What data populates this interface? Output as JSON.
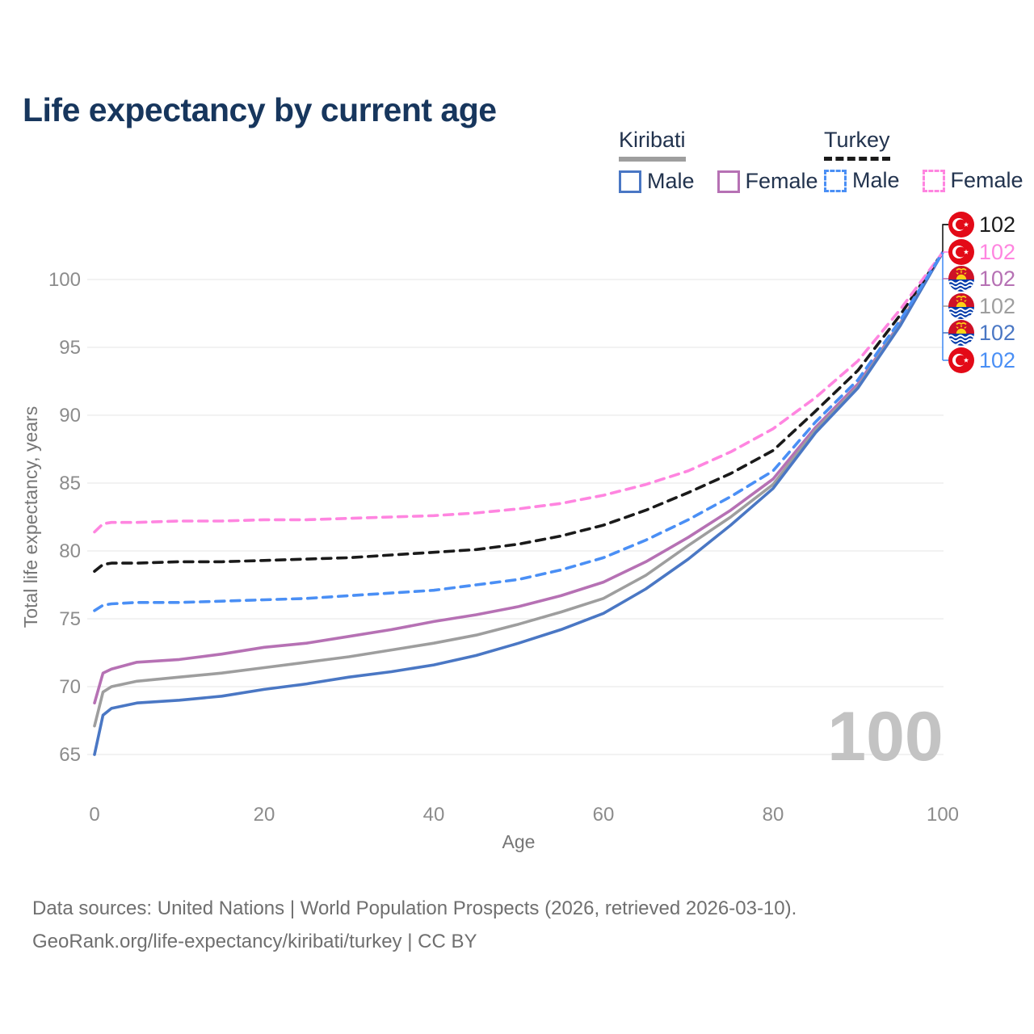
{
  "title": "Life expectancy by current age",
  "watermark": "100",
  "legend": {
    "groups": [
      {
        "name": "Kiribati",
        "line_style": "solid",
        "underline_color": "#9e9e9e",
        "items": [
          {
            "label": "Male",
            "color": "#4a77c4"
          },
          {
            "label": "Female",
            "color": "#b671b4"
          }
        ]
      },
      {
        "name": "Turkey",
        "line_style": "dashed",
        "underline_color": "#1a1a1a",
        "items": [
          {
            "label": "Male",
            "color": "#4a8ff5"
          },
          {
            "label": "Female",
            "color": "#ff85e0"
          }
        ]
      }
    ]
  },
  "footer": {
    "line1": "Data sources: United Nations | World Population Prospects (2026, retrieved 2026-03-10).",
    "line2": "GeoRank.org/life-expectancy/kiribati/turkey | CC BY"
  },
  "chart_data": {
    "type": "line",
    "title": "Life expectancy by current age",
    "xlabel": "Age",
    "ylabel": "Total life expectancy, years",
    "xlim": [
      0,
      100
    ],
    "ylim": [
      65,
      102
    ],
    "xticks": [
      0,
      20,
      40,
      60,
      80,
      100
    ],
    "yticks": [
      65,
      70,
      75,
      80,
      85,
      90,
      95,
      100
    ],
    "grid": "horizontal",
    "legend_position": "top-right",
    "x": [
      0,
      1,
      2,
      5,
      10,
      15,
      20,
      25,
      30,
      35,
      40,
      45,
      50,
      55,
      60,
      65,
      70,
      75,
      80,
      85,
      90,
      95,
      100
    ],
    "series": [
      {
        "id": "turkey-both",
        "name": "Turkey both sexes",
        "country": "Turkey",
        "group": "Both sexes",
        "line": "dashed",
        "color": "#1a1a1a",
        "flag": "turkey",
        "end_label": "102",
        "values": [
          78.5,
          79.0,
          79.1,
          79.1,
          79.2,
          79.2,
          79.3,
          79.4,
          79.5,
          79.7,
          79.9,
          80.1,
          80.5,
          81.1,
          81.9,
          83.0,
          84.3,
          85.7,
          87.4,
          90.3,
          93.3,
          97.4,
          102
        ]
      },
      {
        "id": "turkey-female",
        "name": "Turkey female",
        "country": "Turkey",
        "group": "Female",
        "line": "dashed",
        "color": "#ff85e0",
        "flag": "turkey",
        "end_label": "102",
        "values": [
          81.4,
          82.0,
          82.1,
          82.1,
          82.2,
          82.2,
          82.3,
          82.3,
          82.4,
          82.5,
          82.6,
          82.8,
          83.1,
          83.5,
          84.1,
          84.9,
          85.9,
          87.3,
          89.0,
          91.3,
          94.0,
          97.8,
          102
        ]
      },
      {
        "id": "kiribati-female",
        "name": "Kiribati female",
        "country": "Kiribati",
        "group": "Female",
        "line": "solid",
        "color": "#b671b4",
        "flag": "kiribati",
        "end_label": "102",
        "values": [
          68.8,
          71.0,
          71.3,
          71.8,
          72.0,
          72.4,
          72.9,
          73.2,
          73.7,
          74.2,
          74.8,
          75.3,
          75.9,
          76.7,
          77.7,
          79.2,
          81.0,
          83.0,
          85.3,
          89.1,
          92.3,
          96.8,
          102
        ]
      },
      {
        "id": "kiribati-both",
        "name": "Kiribati both sexes",
        "country": "Kiribati",
        "group": "Both sexes",
        "line": "solid",
        "color": "#9e9e9e",
        "flag": "kiribati",
        "end_label": "102",
        "values": [
          67.1,
          69.6,
          70.0,
          70.4,
          70.7,
          71.0,
          71.4,
          71.8,
          72.2,
          72.7,
          73.2,
          73.8,
          74.6,
          75.5,
          76.5,
          78.2,
          80.4,
          82.5,
          84.9,
          88.9,
          92.1,
          96.7,
          102
        ]
      },
      {
        "id": "kiribati-male",
        "name": "Kiribati male",
        "country": "Kiribati",
        "group": "Male",
        "line": "solid",
        "color": "#4a77c4",
        "flag": "kiribati",
        "end_label": "102",
        "values": [
          65.0,
          67.9,
          68.4,
          68.8,
          69.0,
          69.3,
          69.8,
          70.2,
          70.7,
          71.1,
          71.6,
          72.3,
          73.2,
          74.2,
          75.4,
          77.2,
          79.4,
          81.9,
          84.6,
          88.7,
          92.0,
          96.6,
          102
        ]
      },
      {
        "id": "turkey-male",
        "name": "Turkey male",
        "country": "Turkey",
        "group": "Male",
        "line": "dashed",
        "color": "#4a8ff5",
        "flag": "turkey",
        "end_label": "102",
        "values": [
          75.6,
          76.0,
          76.1,
          76.2,
          76.2,
          76.3,
          76.4,
          76.5,
          76.7,
          76.9,
          77.1,
          77.5,
          77.9,
          78.6,
          79.5,
          80.8,
          82.3,
          84.0,
          85.9,
          89.5,
          92.6,
          97.0,
          102
        ]
      }
    ]
  }
}
